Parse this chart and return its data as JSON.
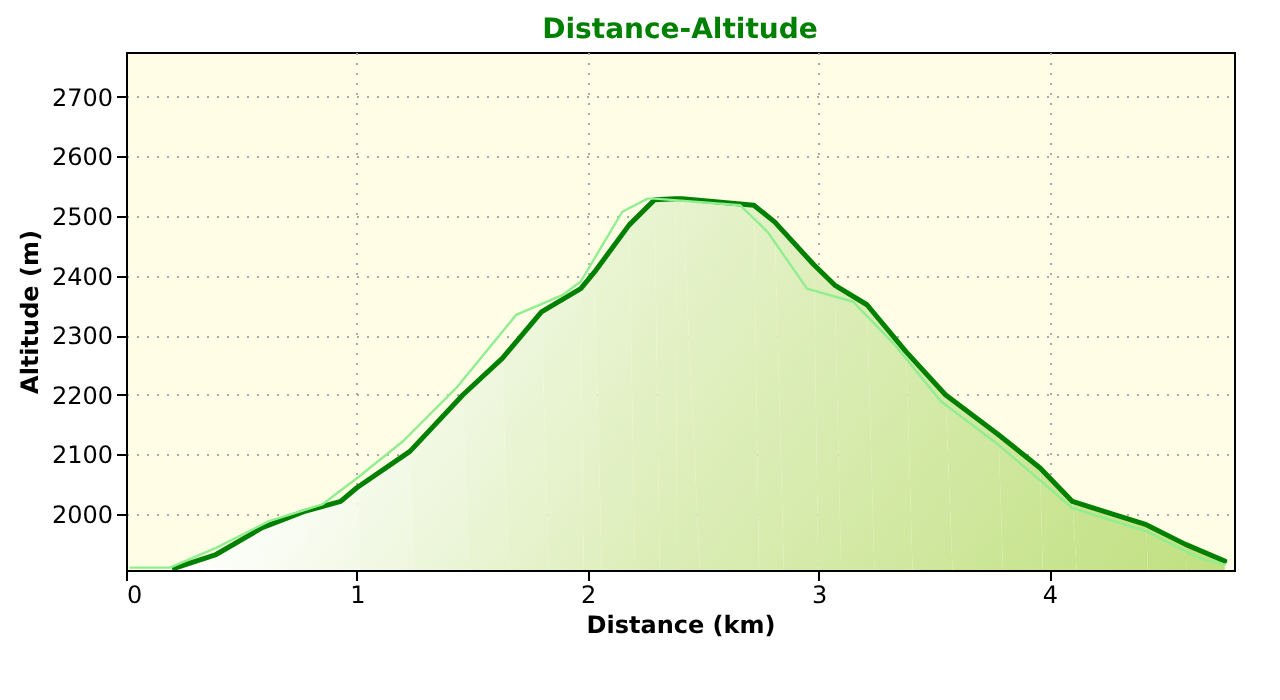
{
  "chart_data": {
    "type": "line",
    "title": "Distance-Altitude",
    "xlabel": "Distance (km)",
    "ylabel": "Altitude (m)",
    "xlim": [
      0,
      4.8
    ],
    "ylim": [
      1906,
      2775
    ],
    "xticks": [
      0,
      1,
      2,
      3,
      4
    ],
    "yticks": [
      2000,
      2100,
      2200,
      2300,
      2400,
      2500,
      2600,
      2700
    ],
    "grid": true,
    "line_style": "solid",
    "marker": "none",
    "series": [
      {
        "color": "#90ee90",
        "x": [
          0.02,
          0.19,
          0.39,
          0.62,
          0.85,
          1.0,
          1.2,
          1.43,
          1.69,
          1.89,
          1.97,
          2.15,
          2.26,
          2.29,
          2.66,
          2.78,
          2.95,
          3.15,
          3.33,
          3.53,
          3.78,
          4.1,
          4.42,
          4.65,
          4.76
        ],
        "values": [
          1910,
          1910,
          1943,
          1988,
          2016,
          2060,
          2122,
          2211,
          2334,
          2367,
          2390,
          2507,
          2529,
          2529,
          2518,
          2473,
          2378,
          2356,
          2284,
          2189,
          2116,
          2010,
          1971,
          1926,
          1915
        ]
      },
      {
        "type": "area",
        "color": "#008000",
        "x": [
          0.21,
          0.39,
          0.59,
          0.77,
          0.93,
          1.0,
          1.23,
          1.46,
          1.63,
          1.8,
          1.97,
          2.03,
          2.18,
          2.29,
          2.38,
          2.41,
          2.72,
          2.81,
          2.98,
          3.07,
          3.21,
          3.38,
          3.55,
          3.78,
          3.96,
          4.1,
          4.42,
          4.59,
          4.76
        ],
        "values": [
          1909,
          1932,
          1977,
          2004,
          2021,
          2044,
          2105,
          2200,
          2261,
          2339,
          2378,
          2406,
          2485,
          2527,
          2529,
          2529,
          2518,
          2490,
          2418,
          2384,
          2351,
          2272,
          2200,
          2133,
          2077,
          2021,
          1982,
          1949,
          1921
        ]
      }
    ]
  }
}
